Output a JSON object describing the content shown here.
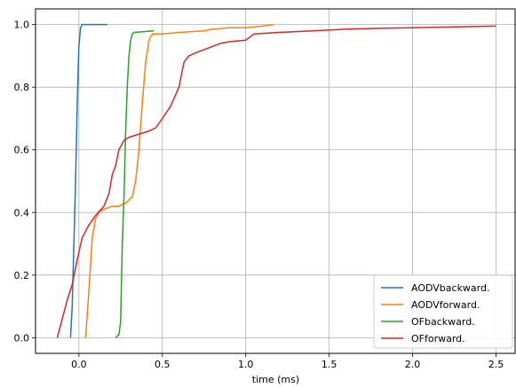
{
  "chart_data": {
    "type": "line",
    "xlabel": "time (ms)",
    "ylabel": "",
    "xlim": [
      -0.26,
      2.62
    ],
    "ylim": [
      -0.05,
      1.05
    ],
    "xticks": [
      0.0,
      0.5,
      1.0,
      1.5,
      2.0,
      2.5
    ],
    "xtick_labels": [
      "0.0",
      "0.5",
      "1.0",
      "1.5",
      "2.0",
      "2.5"
    ],
    "yticks": [
      0.0,
      0.2,
      0.4,
      0.6,
      0.8,
      1.0
    ],
    "ytick_labels": [
      "0.0",
      "0.2",
      "0.4",
      "0.6",
      "0.8",
      "1.0"
    ],
    "grid": true,
    "legend_position": "lower-right",
    "series": [
      {
        "name": "AODVbackward.",
        "color": "#1f77b4",
        "x": [
          -0.05,
          -0.04,
          -0.03,
          -0.02,
          -0.01,
          0.0,
          0.01,
          0.02,
          0.05,
          0.1,
          0.17
        ],
        "y": [
          0.0,
          0.1,
          0.3,
          0.5,
          0.75,
          0.93,
          0.99,
          1.0,
          1.0,
          1.0,
          1.0
        ]
      },
      {
        "name": "AODVforward.",
        "color": "#ff7f0e",
        "x": [
          0.04,
          0.06,
          0.08,
          0.1,
          0.12,
          0.15,
          0.2,
          0.24,
          0.28,
          0.32,
          0.34,
          0.36,
          0.38,
          0.4,
          0.42,
          0.44,
          0.46,
          0.5,
          0.6,
          0.75,
          0.8,
          0.9,
          1.0,
          1.1,
          1.17
        ],
        "y": [
          0.0,
          0.15,
          0.32,
          0.38,
          0.4,
          0.41,
          0.42,
          0.42,
          0.43,
          0.45,
          0.5,
          0.6,
          0.75,
          0.88,
          0.95,
          0.97,
          0.97,
          0.97,
          0.975,
          0.98,
          0.985,
          0.99,
          0.99,
          0.995,
          1.0
        ]
      },
      {
        "name": "OFbackward.",
        "color": "#2ca02c",
        "x": [
          0.22,
          0.24,
          0.25,
          0.26,
          0.27,
          0.28,
          0.29,
          0.3,
          0.31,
          0.32,
          0.33,
          0.45
        ],
        "y": [
          0.0,
          0.01,
          0.05,
          0.3,
          0.45,
          0.65,
          0.8,
          0.9,
          0.95,
          0.97,
          0.975,
          0.98
        ]
      },
      {
        "name": "OFforward.",
        "color": "#d62728",
        "x": [
          -0.13,
          -0.1,
          -0.07,
          -0.04,
          -0.01,
          0.02,
          0.06,
          0.1,
          0.15,
          0.18,
          0.2,
          0.22,
          0.24,
          0.27,
          0.3,
          0.36,
          0.42,
          0.46,
          0.5,
          0.55,
          0.6,
          0.63,
          0.66,
          0.7,
          0.75,
          0.8,
          0.85,
          0.9,
          1.0,
          1.05,
          1.2,
          1.4,
          1.6,
          1.8,
          2.0,
          2.2,
          2.5
        ],
        "y": [
          0.0,
          0.06,
          0.12,
          0.17,
          0.25,
          0.32,
          0.36,
          0.39,
          0.42,
          0.46,
          0.52,
          0.55,
          0.6,
          0.63,
          0.64,
          0.65,
          0.66,
          0.67,
          0.7,
          0.74,
          0.8,
          0.88,
          0.9,
          0.91,
          0.92,
          0.93,
          0.94,
          0.945,
          0.95,
          0.97,
          0.975,
          0.98,
          0.985,
          0.988,
          0.99,
          0.992,
          0.995
        ]
      }
    ]
  }
}
